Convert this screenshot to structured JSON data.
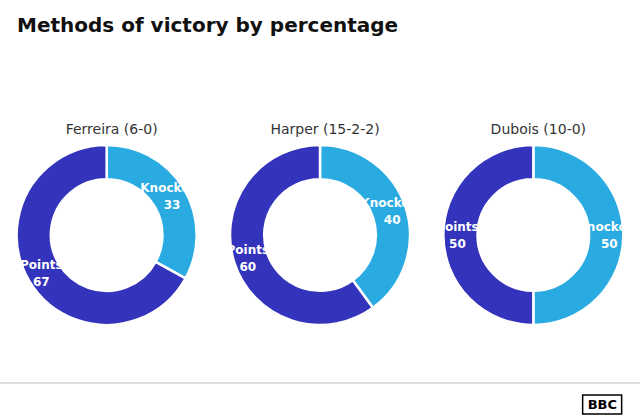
{
  "title": "Methods of victory by percentage",
  "annotations": [
    "BBC"
  ],
  "chart_data": [
    {
      "type": "pie",
      "subtitle": "Ferreira (6-0)",
      "categories": [
        "Knockout",
        "Points"
      ],
      "values": [
        33,
        67
      ],
      "colors": [
        "#29ABE2",
        "#3333BB"
      ],
      "data_labels": true
    },
    {
      "type": "pie",
      "subtitle": "Harper (15-2-2)",
      "categories": [
        "Knockout",
        "Points"
      ],
      "values": [
        40,
        60
      ],
      "colors": [
        "#29ABE2",
        "#3333BB"
      ],
      "data_labels": true
    },
    {
      "type": "pie",
      "subtitle": "Dubois (10-0)",
      "categories": [
        "Knockout",
        "Points"
      ],
      "values": [
        50,
        50
      ],
      "colors": [
        "#29ABE2",
        "#3333BB"
      ],
      "data_labels": true
    }
  ]
}
